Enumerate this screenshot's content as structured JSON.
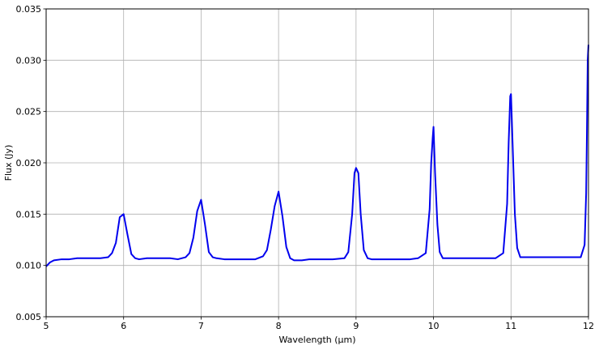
{
  "chart_data": {
    "type": "line",
    "title": "",
    "xlabel": "Wavelength (μm)",
    "ylabel": "Flux (Jy)",
    "xlim": [
      5,
      12
    ],
    "ylim": [
      0.005,
      0.035
    ],
    "x_ticks": [
      5,
      6,
      7,
      8,
      9,
      10,
      11,
      12
    ],
    "x_tick_labels": [
      "5",
      "6",
      "7",
      "8",
      "9",
      "10",
      "11",
      "12"
    ],
    "y_ticks": [
      0.005,
      0.01,
      0.015,
      0.02,
      0.025,
      0.03,
      0.035
    ],
    "y_tick_labels": [
      "0.005",
      "0.010",
      "0.015",
      "0.020",
      "0.025",
      "0.030",
      "0.035"
    ],
    "grid": true,
    "legend": "none",
    "series": [
      {
        "color": "#0000ee",
        "x": [
          5.0,
          5.05,
          5.1,
          5.2,
          5.3,
          5.4,
          5.5,
          5.6,
          5.7,
          5.8,
          5.85,
          5.9,
          5.95,
          6.0,
          6.05,
          6.1,
          6.15,
          6.2,
          6.3,
          6.4,
          6.5,
          6.6,
          6.7,
          6.8,
          6.85,
          6.9,
          6.95,
          7.0,
          7.05,
          7.1,
          7.15,
          7.2,
          7.3,
          7.4,
          7.5,
          7.6,
          7.7,
          7.8,
          7.85,
          7.9,
          7.95,
          8.0,
          8.05,
          8.1,
          8.15,
          8.2,
          8.3,
          8.4,
          8.5,
          8.6,
          8.7,
          8.85,
          8.9,
          8.95,
          8.98,
          9.0,
          9.03,
          9.06,
          9.1,
          9.15,
          9.2,
          9.3,
          9.4,
          9.5,
          9.6,
          9.7,
          9.8,
          9.9,
          9.95,
          9.97,
          9.99,
          10.0,
          10.02,
          10.05,
          10.08,
          10.12,
          10.2,
          10.3,
          10.4,
          10.5,
          10.6,
          10.7,
          10.8,
          10.9,
          10.95,
          10.97,
          10.99,
          11.0,
          11.02,
          11.05,
          11.08,
          11.12,
          11.2,
          11.3,
          11.4,
          11.5,
          11.6,
          11.7,
          11.8,
          11.9,
          11.95,
          11.97,
          11.98,
          11.99,
          12.0
        ],
        "y": [
          0.0099,
          0.0103,
          0.0105,
          0.0106,
          0.0106,
          0.0107,
          0.0107,
          0.0107,
          0.0107,
          0.0108,
          0.0112,
          0.0122,
          0.0147,
          0.015,
          0.013,
          0.0111,
          0.0107,
          0.0106,
          0.0107,
          0.0107,
          0.0107,
          0.0107,
          0.0106,
          0.0108,
          0.0112,
          0.0127,
          0.0153,
          0.0164,
          0.014,
          0.0113,
          0.0108,
          0.0107,
          0.0106,
          0.0106,
          0.0106,
          0.0106,
          0.0106,
          0.0109,
          0.0115,
          0.0135,
          0.0158,
          0.0172,
          0.0148,
          0.0118,
          0.0107,
          0.0105,
          0.0105,
          0.0106,
          0.0106,
          0.0106,
          0.0106,
          0.0107,
          0.0113,
          0.015,
          0.019,
          0.0195,
          0.019,
          0.015,
          0.0115,
          0.0107,
          0.0106,
          0.0106,
          0.0106,
          0.0106,
          0.0106,
          0.0106,
          0.0107,
          0.0112,
          0.0155,
          0.02,
          0.0225,
          0.0235,
          0.019,
          0.014,
          0.0113,
          0.0107,
          0.0107,
          0.0107,
          0.0107,
          0.0107,
          0.0107,
          0.0107,
          0.0107,
          0.0112,
          0.016,
          0.022,
          0.0265,
          0.0267,
          0.022,
          0.015,
          0.0117,
          0.0108,
          0.0108,
          0.0108,
          0.0108,
          0.0108,
          0.0108,
          0.0108,
          0.0108,
          0.0108,
          0.012,
          0.017,
          0.023,
          0.03,
          0.0315
        ]
      }
    ]
  }
}
